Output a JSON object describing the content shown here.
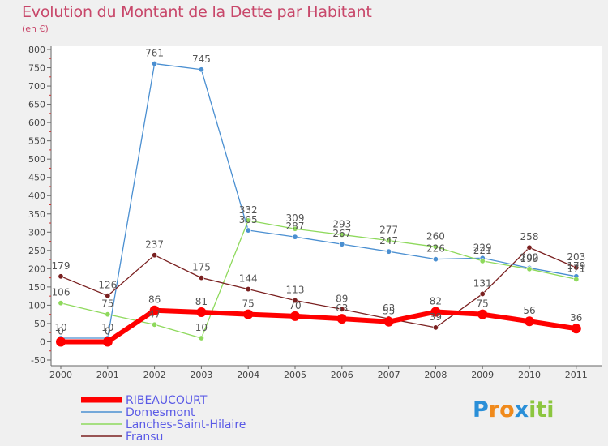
{
  "chart_data": {
    "type": "line",
    "title": "Evolution du Montant de la Dette par Habitant",
    "subtitle": "(en €)",
    "x": [
      "2000",
      "2001",
      "2002",
      "2003",
      "2004",
      "2005",
      "2006",
      "2007",
      "2008",
      "2009",
      "2010",
      "2011"
    ],
    "yticks": [
      -50,
      0,
      50,
      100,
      150,
      200,
      250,
      300,
      350,
      400,
      450,
      500,
      550,
      600,
      650,
      700,
      750,
      800
    ],
    "ylim": [
      -50,
      800
    ],
    "grid": false,
    "legend_position": "bottom-left",
    "series": [
      {
        "name": "RIBEAUCOURT",
        "color": "#ff0000",
        "values": [
          0,
          0,
          86,
          81,
          75,
          70,
          63,
          55,
          82,
          75,
          56,
          36
        ],
        "labels": [
          "0",
          "0",
          "86",
          "81",
          "75",
          "70",
          "63",
          "55",
          "82",
          "75",
          "56",
          "36"
        ],
        "emphasis": true
      },
      {
        "name": "Domesmont",
        "color": "#4a8fd1",
        "values": [
          10,
          10,
          761,
          745,
          305,
          287,
          267,
          247,
          226,
          229,
          202,
          179
        ],
        "labels": [
          "10",
          "10",
          "761",
          "745",
          "305",
          "287",
          "267",
          "247",
          "226",
          "229",
          "202",
          "179"
        ]
      },
      {
        "name": "Lanches-Saint-Hilaire",
        "color": "#8ed95c",
        "values": [
          106,
          75,
          47,
          10,
          332,
          309,
          293,
          277,
          260,
          221,
          199,
          171
        ],
        "labels": [
          "106",
          "75",
          "47",
          "10",
          "332",
          "309",
          "293",
          "277",
          "260",
          "221",
          "199",
          "171"
        ]
      },
      {
        "name": "Fransu",
        "color": "#7a2020",
        "values": [
          179,
          126,
          237,
          175,
          144,
          113,
          89,
          63,
          39,
          131,
          258,
          203
        ],
        "labels": [
          "179",
          "126",
          "237",
          "175",
          "144",
          "113",
          "89",
          "63",
          "39",
          "131",
          "258",
          "203"
        ]
      }
    ]
  },
  "logo": {
    "letters": [
      "P",
      "r",
      "o",
      "x",
      "i",
      "t",
      "i"
    ],
    "colors": [
      "#2a8fd8",
      "#f08a1c",
      "#f08a1c",
      "#2a8fd8",
      "#8cc63f",
      "#8cc63f",
      "#8cc63f"
    ]
  }
}
